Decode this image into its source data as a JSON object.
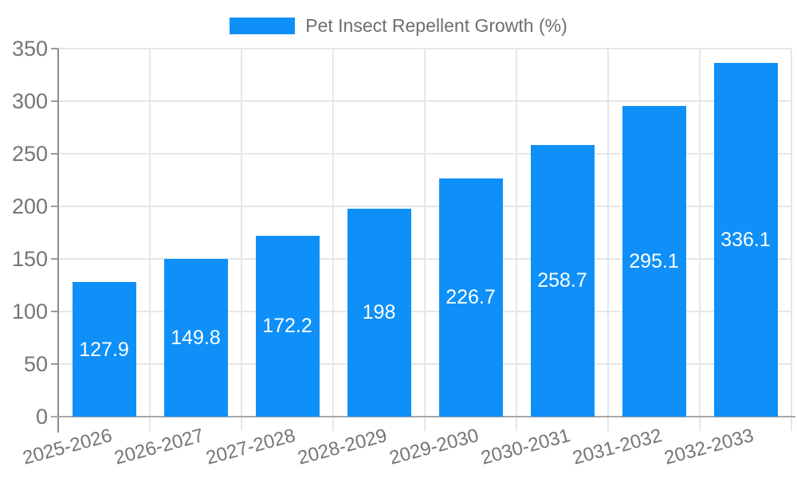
{
  "legend": {
    "label": "Pet Insect Repellent Growth (%)"
  },
  "chart_data": {
    "type": "bar",
    "title": "Pet Insect Repellent Growth (%)",
    "categories": [
      "2025-2026",
      "2026-2027",
      "2027-2028",
      "2028-2029",
      "2029-2030",
      "2030-2031",
      "2031-2032",
      "2032-2033"
    ],
    "values": [
      127.9,
      149.8,
      172.2,
      198,
      226.7,
      258.7,
      295.1,
      336.1
    ],
    "value_labels": [
      "127.9",
      "149.8",
      "172.2",
      "198",
      "226.7",
      "258.7",
      "295.1",
      "336.1"
    ],
    "xlabel": "",
    "ylabel": "",
    "ylim": [
      0,
      350
    ],
    "y_ticks": [
      0,
      50,
      100,
      150,
      200,
      250,
      300,
      350
    ],
    "grid": true,
    "legend_position": "top-center",
    "bar_color": "#0f90f8",
    "value_label_color": "#ffffff",
    "axis_text_color": "#757575",
    "grid_color": "#e6e6e6",
    "axis_line_color": "#8c8c8c"
  }
}
